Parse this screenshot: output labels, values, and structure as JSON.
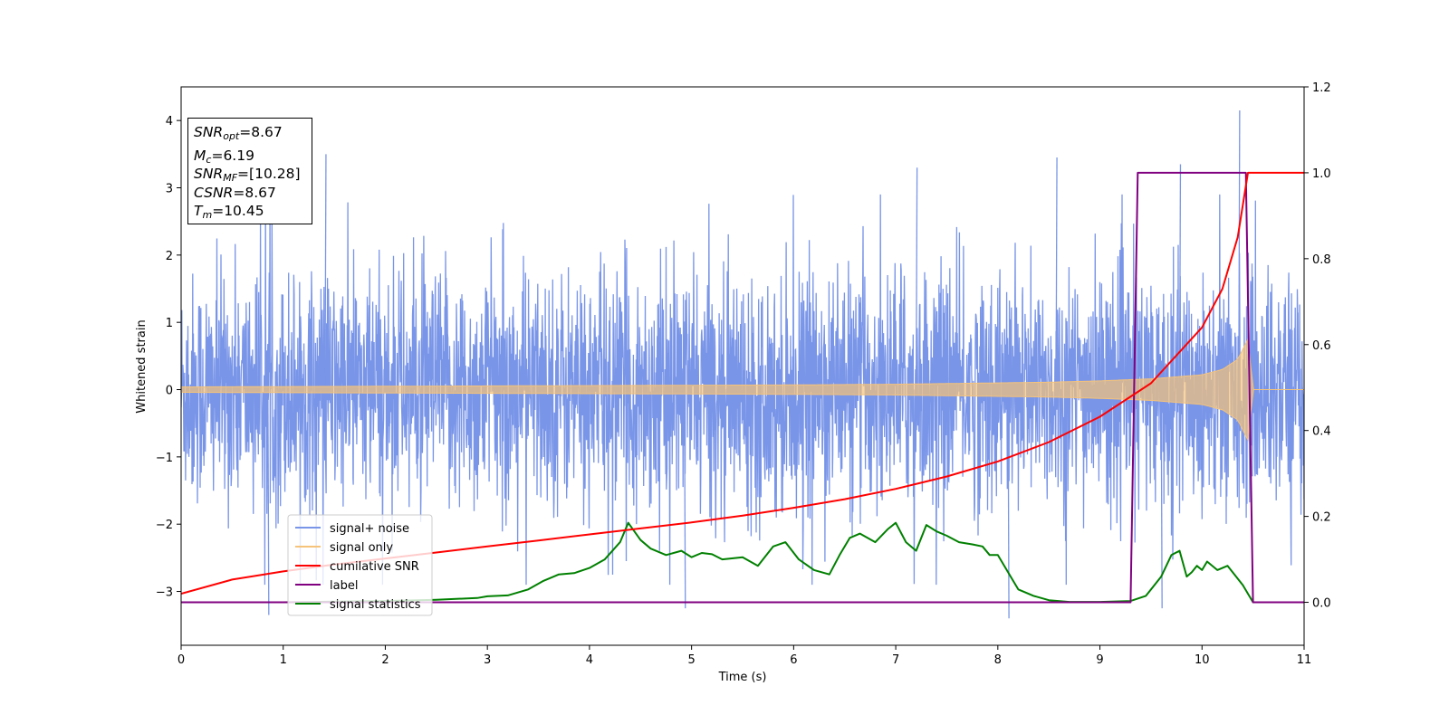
{
  "chart_data": {
    "type": "line",
    "xlabel": "Time (s)",
    "ylabel": "Whitened strain",
    "xlim": [
      0,
      11
    ],
    "ylim": [
      -3.8,
      4.5
    ],
    "y2lim": [
      -0.1,
      1.2
    ],
    "x_ticks": [
      "0",
      "1",
      "2",
      "3",
      "4",
      "5",
      "6",
      "7",
      "8",
      "9",
      "10",
      "11"
    ],
    "y_ticks": [
      {
        "v": -3,
        "label": "−3"
      },
      {
        "v": -2,
        "label": "−2"
      },
      {
        "v": -1,
        "label": "−1"
      },
      {
        "v": 0,
        "label": "0"
      },
      {
        "v": 1,
        "label": "1"
      },
      {
        "v": 2,
        "label": "2"
      },
      {
        "v": 3,
        "label": "3"
      },
      {
        "v": 4,
        "label": "4"
      }
    ],
    "y2_ticks": [
      "0.0",
      "0.2",
      "0.4",
      "0.6",
      "0.8",
      "1.0",
      "1.2"
    ],
    "y2_tick_values": [
      0.0,
      0.2,
      0.4,
      0.6,
      0.8,
      1.0,
      1.2
    ],
    "legend_position": "lower-left",
    "grid": false,
    "annotation": {
      "snr_opt": "8.67",
      "mc": "6.19",
      "snr_mf": "[10.28]",
      "csnr": "8.67",
      "tm": "10.45"
    },
    "series": [
      {
        "name": "signal+ noise",
        "axis": "left",
        "color": "#7995e8",
        "description": "whitened strain, noise approx. within [-2.5, 2.5] with spikes up to 4.15",
        "x_range": [
          0,
          11
        ],
        "envelope_typical": [
          -1.8,
          1.8
        ],
        "peaks": [
          {
            "x": 10.36,
            "y": 4.15
          },
          {
            "x": 1.41,
            "y": 3.5
          },
          {
            "x": 8.57,
            "y": 3.45
          },
          {
            "x": 9.78,
            "y": 3.35
          },
          {
            "x": 7.2,
            "y": 3.3
          },
          {
            "x": 8.1,
            "y": -3.4
          },
          {
            "x": 0.85,
            "y": -3.35
          },
          {
            "x": 4.93,
            "y": -3.25
          },
          {
            "x": 9.6,
            "y": -3.25
          }
        ]
      },
      {
        "name": "signal only",
        "axis": "left",
        "color": "#f5c37a",
        "description": "chirp signal whose amplitude grows until merger",
        "amplitude_x": [
          0,
          2,
          4,
          6,
          7,
          8,
          8.5,
          9,
          9.5,
          10,
          10.2,
          10.35,
          10.45,
          10.5,
          11
        ],
        "amplitude_y": [
          0.04,
          0.05,
          0.06,
          0.07,
          0.08,
          0.1,
          0.11,
          0.13,
          0.16,
          0.22,
          0.3,
          0.45,
          0.75,
          0.0,
          0.0
        ]
      },
      {
        "name": "cumilative SNR",
        "axis": "right",
        "color": "#ff0000",
        "x": [
          0,
          0.5,
          1,
          1.5,
          2,
          2.5,
          3,
          3.5,
          4,
          4.5,
          5,
          5.5,
          6,
          6.5,
          7,
          7.5,
          8,
          8.5,
          9,
          9.5,
          10,
          10.2,
          10.35,
          10.45,
          11
        ],
        "y": [
          0.02,
          0.053,
          0.072,
          0.088,
          0.102,
          0.116,
          0.13,
          0.144,
          0.158,
          0.172,
          0.186,
          0.202,
          0.22,
          0.24,
          0.264,
          0.293,
          0.328,
          0.373,
          0.432,
          0.51,
          0.64,
          0.73,
          0.85,
          1.0,
          1.0
        ]
      },
      {
        "name": "label",
        "axis": "right",
        "color": "#800080",
        "x": [
          0,
          9.3,
          9.37,
          10.43,
          10.5,
          11
        ],
        "y": [
          0,
          0,
          1,
          1,
          0,
          0
        ]
      },
      {
        "name": "signal statistics",
        "axis": "right",
        "color": "#008000",
        "x": [
          0,
          1,
          2,
          2.5,
          2.9,
          3.0,
          3.2,
          3.4,
          3.55,
          3.7,
          3.85,
          4.0,
          4.15,
          4.3,
          4.38,
          4.5,
          4.6,
          4.75,
          4.9,
          5.0,
          5.1,
          5.2,
          5.3,
          5.5,
          5.65,
          5.8,
          5.92,
          6.05,
          6.2,
          6.35,
          6.45,
          6.55,
          6.65,
          6.8,
          6.92,
          7.0,
          7.1,
          7.2,
          7.3,
          7.4,
          7.5,
          7.62,
          7.75,
          7.85,
          7.92,
          8.0,
          8.1,
          8.2,
          8.35,
          8.5,
          8.7,
          9.0,
          9.3,
          9.45,
          9.6,
          9.7,
          9.78,
          9.85,
          9.9,
          9.95,
          10.0,
          10.05,
          10.15,
          10.25,
          10.4,
          10.5,
          11
        ],
        "y": [
          0.0,
          0.0,
          0.003,
          0.006,
          0.01,
          0.014,
          0.016,
          0.03,
          0.05,
          0.065,
          0.068,
          0.08,
          0.1,
          0.14,
          0.185,
          0.145,
          0.125,
          0.11,
          0.12,
          0.105,
          0.115,
          0.112,
          0.1,
          0.105,
          0.085,
          0.13,
          0.14,
          0.1,
          0.075,
          0.065,
          0.11,
          0.15,
          0.16,
          0.14,
          0.17,
          0.185,
          0.14,
          0.12,
          0.18,
          0.165,
          0.155,
          0.14,
          0.135,
          0.13,
          0.11,
          0.11,
          0.07,
          0.03,
          0.015,
          0.005,
          0.001,
          0.001,
          0.003,
          0.015,
          0.06,
          0.11,
          0.12,
          0.06,
          0.07,
          0.085,
          0.075,
          0.095,
          0.075,
          0.085,
          0.04,
          0.0,
          0.0
        ]
      }
    ]
  }
}
